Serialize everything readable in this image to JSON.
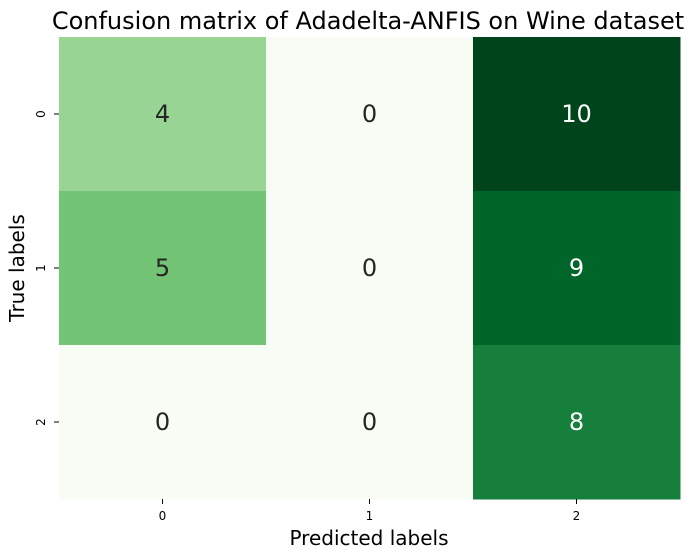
{
  "chart_data": {
    "type": "heatmap",
    "title": "Confusion matrix of Adadelta-ANFIS on Wine dataset",
    "xlabel": "Predicted labels",
    "ylabel": "True labels",
    "x_categories": [
      "0",
      "1",
      "2"
    ],
    "y_categories": [
      "0",
      "1",
      "2"
    ],
    "values": [
      [
        4,
        0,
        10
      ],
      [
        5,
        0,
        9
      ],
      [
        0,
        0,
        8
      ]
    ],
    "colormap": "Greens",
    "value_range": [
      0,
      10
    ],
    "colorbar": false,
    "grid": false
  }
}
